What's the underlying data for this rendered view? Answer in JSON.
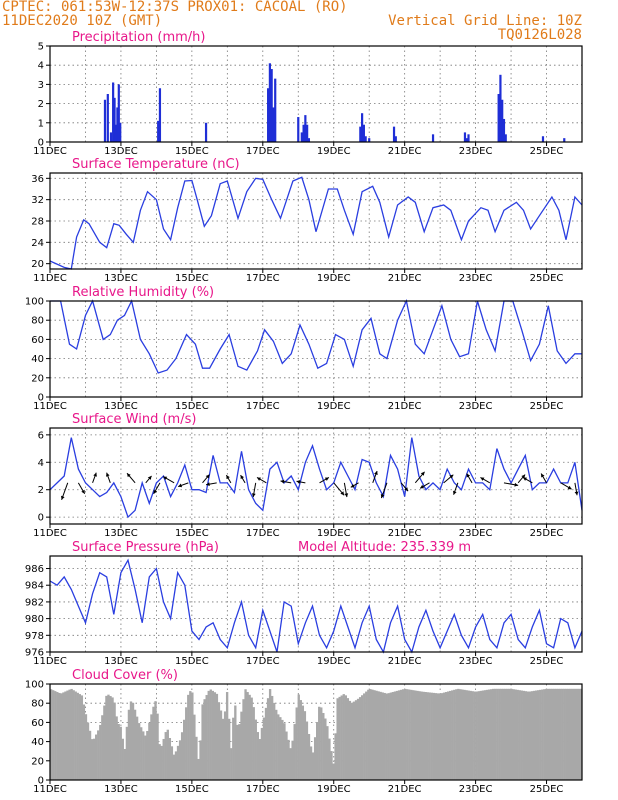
{
  "header": {
    "line1": "CPTEC:  061:53W-12:37S  PROX01: CACOAL (RO)",
    "line2": "11DEC2020 10Z (GMT)",
    "right1": "Vertical Grid Line: 10Z",
    "right2": "TQ0126L028"
  },
  "colors": {
    "header": "#e07b1a",
    "title": "#e8178a",
    "series": "#2a3ee0",
    "bar": "#1f2ed6",
    "cloud": "#a8a8a8"
  },
  "x_axis": {
    "start_day": 11,
    "end_day": 26,
    "tick_labels": [
      "11DEC",
      "13DEC",
      "15DEC",
      "17DEC",
      "19DEC",
      "21DEC",
      "23DEC",
      "25DEC"
    ],
    "tick_days": [
      11,
      13,
      15,
      17,
      19,
      21,
      23,
      25
    ]
  },
  "chart_data": [
    {
      "id": "precip",
      "type": "bar",
      "title": "Precipitation (mm/h)",
      "ylim": [
        0,
        5
      ],
      "yticks": [
        0,
        1,
        2,
        3,
        4,
        5
      ],
      "x": [
        12.55,
        12.63,
        12.72,
        12.78,
        12.82,
        12.86,
        12.9,
        12.94,
        12.98,
        14.05,
        14.1,
        15.4,
        17.15,
        17.2,
        17.25,
        17.3,
        17.35,
        18.0,
        18.1,
        18.15,
        18.2,
        18.25,
        18.3,
        19.75,
        19.8,
        19.85,
        19.9,
        20.0,
        20.7,
        20.75,
        21.8,
        22.7,
        22.75,
        22.8,
        23.65,
        23.7,
        23.75,
        23.8,
        23.85,
        24.9,
        25.5
      ],
      "values": [
        2.2,
        2.5,
        0.5,
        3.1,
        2.3,
        0.9,
        1.8,
        3.0,
        1.0,
        1.1,
        2.8,
        1.0,
        2.8,
        4.1,
        3.8,
        1.8,
        3.3,
        1.3,
        0.5,
        0.9,
        1.4,
        0.9,
        0.2,
        0.8,
        1.5,
        0.9,
        0.3,
        0.2,
        0.8,
        0.3,
        0.4,
        0.5,
        0.2,
        0.4,
        2.5,
        3.5,
        2.2,
        1.2,
        0.4,
        0.3,
        0.2
      ]
    },
    {
      "id": "temp",
      "type": "line",
      "title": "Surface Temperature (nC)",
      "ylim": [
        19,
        37
      ],
      "yticks": [
        20,
        24,
        28,
        32,
        36
      ],
      "x": [
        11,
        11.4,
        11.6,
        11.75,
        11.95,
        12.1,
        12.4,
        12.6,
        12.8,
        12.95,
        13.15,
        13.35,
        13.55,
        13.75,
        14,
        14.2,
        14.4,
        14.6,
        14.8,
        15,
        15.15,
        15.35,
        15.55,
        15.8,
        16,
        16.15,
        16.3,
        16.55,
        16.8,
        17,
        17.25,
        17.5,
        17.85,
        18.1,
        18.3,
        18.5,
        18.85,
        19.1,
        19.3,
        19.55,
        19.8,
        20.1,
        20.3,
        20.55,
        20.8,
        21.1,
        21.3,
        21.55,
        21.8,
        22.1,
        22.3,
        22.6,
        22.8,
        23.15,
        23.35,
        23.55,
        23.8,
        24.15,
        24.35,
        24.55,
        24.8,
        25.15,
        25.35,
        25.55,
        25.8,
        26
      ],
      "values": [
        20.5,
        19.3,
        19.0,
        25.0,
        28.2,
        27.5,
        24.0,
        23.0,
        27.5,
        27.2,
        25.5,
        24.0,
        30.0,
        33.5,
        32.0,
        26.5,
        24.5,
        30.5,
        35.5,
        35.6,
        32.0,
        27.0,
        29.0,
        35.0,
        35.5,
        32.0,
        28.5,
        33.5,
        36.0,
        35.8,
        32.0,
        28.5,
        35.5,
        36.2,
        32.0,
        26.0,
        34.0,
        34.0,
        30.0,
        25.5,
        33.5,
        34.5,
        31.5,
        25.0,
        31.0,
        32.5,
        31.5,
        26.0,
        30.5,
        31.0,
        30.0,
        24.5,
        28.0,
        30.5,
        30.0,
        26.0,
        30.0,
        31.5,
        30.0,
        26.5,
        29.0,
        32.5,
        30.0,
        24.5,
        32.5,
        31.0
      ]
    },
    {
      "id": "rh",
      "type": "line",
      "title": "Relative Humidity (%)",
      "ylim": [
        0,
        100
      ],
      "yticks": [
        0,
        20,
        40,
        60,
        80,
        100
      ],
      "x": [
        11,
        11.3,
        11.55,
        11.75,
        12.0,
        12.2,
        12.5,
        12.7,
        12.9,
        13.1,
        13.3,
        13.55,
        13.8,
        14.05,
        14.3,
        14.55,
        14.85,
        15.1,
        15.3,
        15.5,
        15.8,
        16.05,
        16.3,
        16.55,
        16.85,
        17.05,
        17.3,
        17.55,
        17.8,
        18.05,
        18.3,
        18.55,
        18.8,
        19.05,
        19.3,
        19.55,
        19.8,
        20.05,
        20.3,
        20.5,
        20.8,
        21.05,
        21.3,
        21.55,
        21.8,
        22.05,
        22.3,
        22.55,
        22.8,
        23.05,
        23.3,
        23.55,
        23.8,
        24.05,
        24.3,
        24.55,
        24.8,
        25.05,
        25.3,
        25.55,
        25.8,
        26
      ],
      "values": [
        100,
        100,
        55,
        50,
        85,
        100,
        60,
        65,
        80,
        85,
        100,
        60,
        45,
        25,
        28,
        40,
        65,
        55,
        30,
        30,
        50,
        65,
        32,
        28,
        48,
        70,
        58,
        35,
        45,
        75,
        55,
        30,
        35,
        65,
        60,
        32,
        70,
        82,
        45,
        40,
        80,
        100,
        55,
        45,
        70,
        95,
        60,
        42,
        45,
        100,
        70,
        48,
        100,
        100,
        70,
        38,
        55,
        95,
        48,
        35,
        45,
        45
      ]
    },
    {
      "id": "wind",
      "type": "line",
      "title": "Surface Wind (m/s)",
      "ylim": [
        -0.5,
        6.5
      ],
      "yticks": [
        0,
        2,
        4,
        6
      ],
      "x": [
        11,
        11.2,
        11.4,
        11.6,
        11.8,
        12.0,
        12.2,
        12.4,
        12.6,
        12.8,
        13.0,
        13.2,
        13.4,
        13.6,
        13.8,
        14.0,
        14.2,
        14.4,
        14.6,
        14.8,
        15.0,
        15.2,
        15.4,
        15.6,
        15.8,
        16.0,
        16.2,
        16.4,
        16.6,
        16.8,
        17.0,
        17.2,
        17.4,
        17.6,
        17.8,
        18.0,
        18.2,
        18.4,
        18.6,
        18.8,
        19.0,
        19.2,
        19.4,
        19.6,
        19.8,
        20.0,
        20.2,
        20.4,
        20.6,
        20.8,
        21.0,
        21.2,
        21.4,
        21.6,
        21.8,
        22.0,
        22.2,
        22.4,
        22.6,
        22.8,
        23.0,
        23.2,
        23.4,
        23.6,
        23.8,
        24.0,
        24.2,
        24.4,
        24.6,
        24.8,
        25.0,
        25.2,
        25.4,
        25.6,
        25.8,
        26.0
      ],
      "values": [
        2.0,
        2.5,
        3.0,
        5.8,
        3.5,
        2.5,
        2.0,
        1.5,
        1.8,
        2.5,
        1.5,
        0.0,
        0.5,
        2.5,
        1.0,
        2.5,
        3.0,
        1.5,
        2.5,
        3.8,
        2.0,
        2.0,
        1.8,
        4.5,
        2.5,
        2.5,
        1.8,
        4.8,
        2.0,
        1.0,
        0.5,
        3.5,
        4.0,
        2.5,
        3.0,
        2.0,
        4.0,
        5.2,
        3.5,
        2.0,
        2.5,
        4.0,
        3.0,
        2.0,
        4.2,
        4.0,
        2.5,
        1.5,
        4.5,
        3.5,
        1.5,
        5.8,
        3.0,
        2.0,
        2.5,
        2.0,
        3.5,
        2.5,
        2.0,
        3.5,
        2.5,
        2.5,
        2.0,
        5.0,
        3.5,
        2.5,
        3.5,
        4.5,
        2.0,
        2.5,
        2.5,
        3.5,
        2.5,
        2.5,
        4.0,
        0.5
      ],
      "vectors": [
        {
          "x": 11.5,
          "len": 1.0,
          "dir": 200
        },
        {
          "x": 11.8,
          "len": 0.7,
          "dir": 150
        },
        {
          "x": 12.2,
          "len": 0.6,
          "dir": 20
        },
        {
          "x": 12.7,
          "len": 0.6,
          "dir": 340
        },
        {
          "x": 13.4,
          "len": 0.7,
          "dir": 320
        },
        {
          "x": 13.7,
          "len": 0.5,
          "dir": 40
        },
        {
          "x": 14.1,
          "len": 0.7,
          "dir": 210
        },
        {
          "x": 14.5,
          "len": 0.7,
          "dir": 300
        },
        {
          "x": 14.9,
          "len": 0.6,
          "dir": 250
        },
        {
          "x": 15.3,
          "len": 0.6,
          "dir": 40
        },
        {
          "x": 15.7,
          "len": 0.6,
          "dir": 260
        },
        {
          "x": 16.1,
          "len": 0.5,
          "dir": 330
        },
        {
          "x": 16.5,
          "len": 0.5,
          "dir": 330
        },
        {
          "x": 16.8,
          "len": 0.8,
          "dir": 190
        },
        {
          "x": 17.1,
          "len": 0.6,
          "dir": 300
        },
        {
          "x": 17.8,
          "len": 0.6,
          "dir": 280
        },
        {
          "x": 18.2,
          "len": 0.5,
          "dir": 280
        },
        {
          "x": 18.6,
          "len": 0.6,
          "dir": 60
        },
        {
          "x": 19.0,
          "len": 0.9,
          "dir": 140
        },
        {
          "x": 19.3,
          "len": 0.8,
          "dir": 170
        },
        {
          "x": 19.7,
          "len": 0.5,
          "dir": 240
        },
        {
          "x": 20.1,
          "len": 0.7,
          "dir": 20
        },
        {
          "x": 20.5,
          "len": 0.9,
          "dir": 200
        },
        {
          "x": 20.9,
          "len": 0.6,
          "dir": 140
        },
        {
          "x": 21.3,
          "len": 0.8,
          "dir": 40
        },
        {
          "x": 21.7,
          "len": 0.6,
          "dir": 240
        },
        {
          "x": 22.1,
          "len": 0.7,
          "dir": 50
        },
        {
          "x": 22.5,
          "len": 0.7,
          "dir": 200
        },
        {
          "x": 22.9,
          "len": 0.6,
          "dir": 330
        },
        {
          "x": 23.4,
          "len": 0.6,
          "dir": 300
        },
        {
          "x": 23.8,
          "len": 0.8,
          "dir": 100
        },
        {
          "x": 24.2,
          "len": 0.6,
          "dir": 40
        },
        {
          "x": 24.6,
          "len": 0.6,
          "dir": 300
        },
        {
          "x": 25.0,
          "len": 0.6,
          "dir": 330
        },
        {
          "x": 25.4,
          "len": 0.7,
          "dir": 120
        },
        {
          "x": 25.8,
          "len": 0.7,
          "dir": 170
        }
      ]
    },
    {
      "id": "pres",
      "type": "line",
      "title": "Surface Pressure (hPa)",
      "subtitle": "Model Altitude: 235.339 m",
      "ylim": [
        976,
        987.5
      ],
      "yticks": [
        976,
        978,
        980,
        982,
        984,
        986
      ],
      "x": [
        11,
        11.2,
        11.4,
        11.6,
        11.8,
        12.0,
        12.2,
        12.4,
        12.6,
        12.8,
        13.0,
        13.2,
        13.4,
        13.6,
        13.8,
        14.0,
        14.2,
        14.4,
        14.6,
        14.8,
        15.0,
        15.2,
        15.4,
        15.6,
        15.8,
        16.0,
        16.2,
        16.4,
        16.6,
        16.8,
        17.0,
        17.2,
        17.4,
        17.6,
        17.8,
        18.0,
        18.2,
        18.4,
        18.6,
        18.8,
        19.0,
        19.2,
        19.4,
        19.6,
        19.8,
        20.0,
        20.2,
        20.4,
        20.6,
        20.8,
        21.0,
        21.2,
        21.4,
        21.6,
        21.8,
        22.0,
        22.2,
        22.4,
        22.6,
        22.8,
        23.0,
        23.2,
        23.4,
        23.6,
        23.8,
        24.0,
        24.2,
        24.4,
        24.6,
        24.8,
        25.0,
        25.2,
        25.4,
        25.6,
        25.8,
        26.0
      ],
      "values": [
        984.5,
        984.0,
        985.0,
        983.5,
        981.5,
        979.5,
        983.0,
        985.5,
        985.0,
        980.5,
        985.5,
        987.0,
        983.5,
        979.5,
        985.0,
        986.0,
        982.0,
        980.0,
        985.5,
        984.0,
        978.5,
        977.5,
        979.0,
        979.5,
        977.5,
        976.5,
        979.5,
        982.0,
        978.0,
        976.5,
        981.0,
        978.5,
        976.0,
        982.0,
        981.5,
        977.0,
        979.5,
        981.5,
        978.0,
        976.5,
        978.5,
        981.5,
        979.0,
        976.5,
        979.5,
        981.5,
        977.5,
        976.0,
        979.5,
        981.5,
        977.5,
        976.0,
        979.0,
        981.0,
        978.5,
        976.5,
        978.5,
        980.5,
        978.0,
        976.5,
        979.0,
        980.5,
        977.5,
        976.5,
        979.5,
        980.5,
        977.5,
        976.5,
        979.0,
        981.0,
        977.0,
        976.5,
        980.0,
        979.5,
        976.5,
        978.5
      ]
    },
    {
      "id": "cloud",
      "type": "area",
      "title": "Cloud Cover (%)",
      "ylim": [
        0,
        100
      ],
      "yticks": [
        0,
        20,
        40,
        60,
        80,
        100
      ],
      "x": [
        11,
        11.3,
        11.6,
        11.9,
        12.0,
        12.2,
        12.4,
        12.6,
        12.8,
        12.9,
        13.0,
        13.1,
        13.2,
        13.3,
        13.5,
        13.7,
        13.9,
        14.0,
        14.1,
        14.3,
        14.5,
        14.7,
        14.9,
        15.0,
        15.1,
        15.2,
        15.3,
        15.5,
        15.7,
        15.9,
        16.0,
        16.1,
        16.2,
        16.3,
        16.5,
        16.7,
        16.9,
        17.0,
        17.2,
        17.4,
        17.6,
        17.8,
        18.0,
        18.2,
        18.4,
        18.6,
        18.8,
        19.0,
        19.1,
        19.3,
        19.5,
        19.7,
        20.0,
        20.5,
        21.0,
        21.5,
        22.0,
        22.5,
        23.0,
        23.5,
        24.0,
        24.5,
        25.0,
        25.5,
        26.0
      ],
      "values": [
        95,
        90,
        95,
        88,
        70,
        40,
        55,
        90,
        85,
        60,
        55,
        30,
        70,
        85,
        60,
        45,
        75,
        85,
        30,
        55,
        25,
        45,
        90,
        95,
        55,
        15,
        80,
        95,
        90,
        60,
        95,
        30,
        85,
        50,
        95,
        85,
        40,
        60,
        95,
        70,
        60,
        30,
        90,
        70,
        25,
        80,
        60,
        15,
        85,
        90,
        80,
        85,
        95,
        90,
        95,
        92,
        90,
        95,
        92,
        95,
        95,
        92,
        95,
        95,
        95
      ]
    }
  ]
}
